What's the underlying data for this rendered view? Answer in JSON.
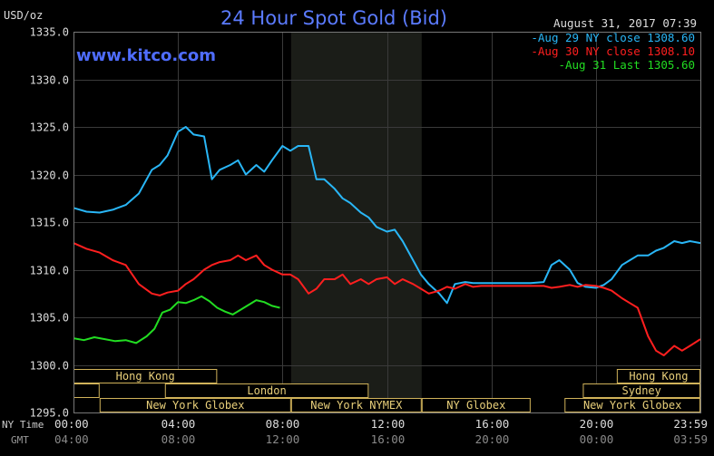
{
  "chart_data": {
    "type": "line",
    "title": "24 Hour Spot Gold (Bid)",
    "website": "www.kitco.com",
    "timestamp": "August 31, 2017 07:39",
    "ylabel": "USD/oz",
    "ylim": [
      1295,
      1335
    ],
    "y_ticks": [
      "1335.0",
      "1330.0",
      "1325.0",
      "1320.0",
      "1315.0",
      "1310.0",
      "1305.0",
      "1300.0",
      "1295.0"
    ],
    "x_row_labels": {
      "ny": "NY Time",
      "gmt": "GMT"
    },
    "x_ticks_ny": [
      "00:00",
      "04:00",
      "08:00",
      "12:00",
      "16:00",
      "20:00",
      "23:59"
    ],
    "x_ticks_gmt": [
      "04:00",
      "08:00",
      "12:00",
      "16:00",
      "20:00",
      "00:00",
      "03:59"
    ],
    "xlim_hours": [
      0,
      24
    ],
    "shaded_region_hours": [
      8.33,
      13.33
    ],
    "legend": [
      {
        "label": "Aug 29 NY close 1308.60",
        "color": "#29b6f6"
      },
      {
        "label": "Aug 30 NY close 1308.10",
        "color": "#ff1f1f"
      },
      {
        "label": "Aug 31 Last 1305.60",
        "color": "#22dd22"
      }
    ],
    "sessions": [
      {
        "label": "Hong Kong",
        "start": 0,
        "end": 5.5,
        "row": 0
      },
      {
        "label": "",
        "start": 0,
        "end": 1.0,
        "row": 1
      },
      {
        "label": "London",
        "start": 3.5,
        "end": 11.3,
        "row": 1
      },
      {
        "label": "New York Globex",
        "start": 1.0,
        "end": 8.33,
        "row": 2
      },
      {
        "label": "New York NYMEX",
        "start": 8.33,
        "end": 13.33,
        "row": 2
      },
      {
        "label": "NY Globex",
        "start": 13.33,
        "end": 17.5,
        "row": 2
      },
      {
        "label": "Hong Kong",
        "start": 20.8,
        "end": 24,
        "row": 0
      },
      {
        "label": "Sydney",
        "start": 19.5,
        "end": 24,
        "row": 1
      },
      {
        "label": "New York Globex",
        "start": 18.8,
        "end": 24,
        "row": 2
      }
    ],
    "series": [
      {
        "name": "Aug 29",
        "color": "#29b6f6",
        "x": [
          0,
          0.5,
          1,
          1.5,
          2,
          2.5,
          3,
          3.3,
          3.6,
          4,
          4.3,
          4.6,
          5,
          5.3,
          5.6,
          6,
          6.3,
          6.6,
          7,
          7.3,
          7.6,
          8,
          8.3,
          8.6,
          9,
          9.3,
          9.6,
          10,
          10.3,
          10.6,
          11,
          11.3,
          11.6,
          12,
          12.3,
          12.6,
          13,
          13.3,
          13.6,
          14,
          14.3,
          14.6,
          15,
          15.3,
          15.6,
          16,
          16.5,
          17,
          17.5,
          18,
          18.3,
          18.6,
          19,
          19.3,
          19.6,
          20,
          20.3,
          20.6,
          21,
          21.3,
          21.6,
          22,
          22.3,
          22.6,
          23,
          23.3,
          23.6,
          24
        ],
        "y": [
          1316.5,
          1316.1,
          1316.0,
          1316.3,
          1316.8,
          1318.0,
          1320.5,
          1321.0,
          1322.0,
          1324.5,
          1325.0,
          1324.2,
          1324.0,
          1319.5,
          1320.5,
          1321.0,
          1321.5,
          1320.0,
          1321.0,
          1320.3,
          1321.5,
          1323.0,
          1322.5,
          1323.0,
          1323.0,
          1319.5,
          1319.5,
          1318.5,
          1317.5,
          1317.0,
          1316.0,
          1315.5,
          1314.5,
          1314.0,
          1314.2,
          1313.0,
          1311.0,
          1309.5,
          1308.5,
          1307.5,
          1306.5,
          1308.5,
          1308.7,
          1308.6,
          1308.6,
          1308.6,
          1308.6,
          1308.6,
          1308.6,
          1308.7,
          1310.5,
          1311.0,
          1310.0,
          1308.6,
          1308.2,
          1308.1,
          1308.4,
          1309.0,
          1310.5,
          1311.0,
          1311.5,
          1311.5,
          1312.0,
          1312.3,
          1313.0,
          1312.8,
          1313.0,
          1312.8
        ]
      },
      {
        "name": "Aug 30",
        "color": "#ff1f1f",
        "x": [
          0,
          0.5,
          1,
          1.5,
          2,
          2.5,
          3,
          3.3,
          3.6,
          4,
          4.3,
          4.6,
          5,
          5.3,
          5.6,
          6,
          6.3,
          6.6,
          7,
          7.3,
          7.6,
          8,
          8.3,
          8.6,
          9,
          9.3,
          9.6,
          10,
          10.3,
          10.6,
          11,
          11.3,
          11.6,
          12,
          12.3,
          12.6,
          13,
          13.3,
          13.6,
          14,
          14.3,
          14.6,
          15,
          15.3,
          15.6,
          16,
          16.5,
          17,
          17.5,
          18,
          18.3,
          18.6,
          19,
          19.3,
          19.6,
          20,
          20.3,
          20.6,
          21,
          21.3,
          21.6,
          22,
          22.3,
          22.6,
          23,
          23.3,
          23.6,
          24
        ],
        "y": [
          1312.8,
          1312.2,
          1311.8,
          1311.0,
          1310.5,
          1308.5,
          1307.5,
          1307.3,
          1307.6,
          1307.8,
          1308.5,
          1309.0,
          1310.0,
          1310.5,
          1310.8,
          1311.0,
          1311.5,
          1311.0,
          1311.5,
          1310.5,
          1310.0,
          1309.5,
          1309.5,
          1309.0,
          1307.5,
          1308.0,
          1309.0,
          1309.0,
          1309.5,
          1308.5,
          1309.0,
          1308.5,
          1309.0,
          1309.2,
          1308.5,
          1309.0,
          1308.5,
          1308.0,
          1307.5,
          1307.8,
          1308.2,
          1308.0,
          1308.5,
          1308.2,
          1308.3,
          1308.3,
          1308.3,
          1308.3,
          1308.3,
          1308.3,
          1308.1,
          1308.2,
          1308.4,
          1308.2,
          1308.4,
          1308.3,
          1308.1,
          1307.8,
          1307.0,
          1306.5,
          1306.0,
          1303.0,
          1301.5,
          1301.0,
          1302.0,
          1301.5,
          1302.0,
          1302.7
        ]
      },
      {
        "name": "Aug 31",
        "color": "#22dd22",
        "x": [
          0,
          0.4,
          0.8,
          1.2,
          1.6,
          2,
          2.4,
          2.8,
          3.1,
          3.4,
          3.7,
          4,
          4.3,
          4.6,
          4.9,
          5.2,
          5.5,
          5.8,
          6.1,
          6.4,
          6.7,
          7,
          7.3,
          7.6,
          7.9
        ],
        "y": [
          1302.8,
          1302.6,
          1302.9,
          1302.7,
          1302.5,
          1302.6,
          1302.3,
          1303.0,
          1303.8,
          1305.5,
          1305.8,
          1306.6,
          1306.5,
          1306.8,
          1307.2,
          1306.7,
          1306.0,
          1305.6,
          1305.3,
          1305.8,
          1306.3,
          1306.8,
          1306.6,
          1306.2,
          1306.0
        ]
      }
    ]
  }
}
